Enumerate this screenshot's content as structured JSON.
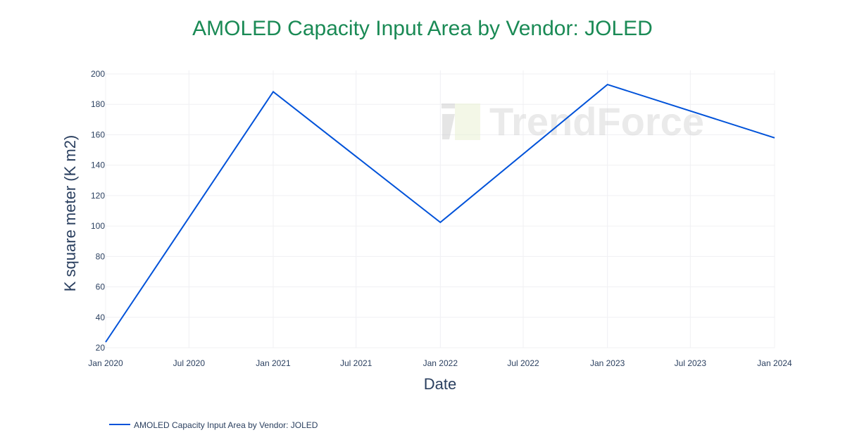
{
  "chart_data": {
    "type": "line",
    "title": "AMOLED Capacity Input Area by Vendor: JOLED",
    "xlabel": "Date",
    "ylabel": "K square meter (K m2)",
    "x": [
      "2020-01-01",
      "2021-01-01",
      "2022-01-01",
      "2023-01-01",
      "2024-01-01"
    ],
    "series": [
      {
        "name": "AMOLED Capacity Input Area by Vendor: JOLED",
        "values": [
          23.7,
          188.3,
          102.4,
          193.0,
          158.0
        ],
        "color": "#0052d9"
      }
    ],
    "xlim": [
      "2020-01-01",
      "2024-01-01"
    ],
    "ylim": [
      20,
      200
    ],
    "x_ticks": [
      "Jan 2020",
      "Jul 2020",
      "Jan 2021",
      "Jul 2021",
      "Jan 2022",
      "Jul 2022",
      "Jan 2023",
      "Jul 2023",
      "Jan 2024"
    ],
    "y_ticks": [
      20,
      40,
      60,
      80,
      100,
      120,
      140,
      160,
      180,
      200
    ],
    "grid": true,
    "legend_placement": "bottom-left",
    "title_color": "#1a8a55",
    "watermark": "TrendForce"
  }
}
